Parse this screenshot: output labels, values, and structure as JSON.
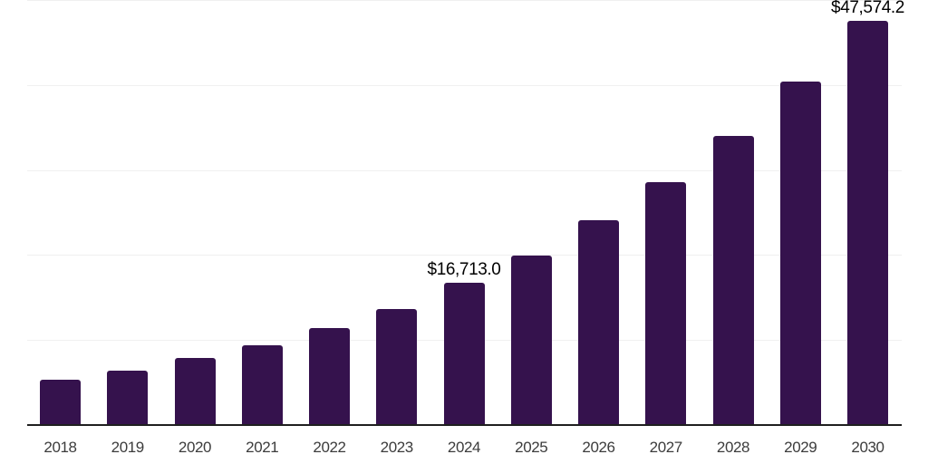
{
  "chart_data": {
    "type": "bar",
    "title": "",
    "xlabel": "",
    "ylabel": "",
    "categories": [
      "2018",
      "2019",
      "2020",
      "2021",
      "2022",
      "2023",
      "2024",
      "2025",
      "2026",
      "2027",
      "2028",
      "2029",
      "2030"
    ],
    "values": [
      5350,
      6450,
      7840,
      9430,
      11390,
      13700,
      16713.0,
      19990,
      24110,
      28620,
      34000,
      40380,
      47574.2
    ],
    "data_labels": {
      "2024": "$16,713.0",
      "2030": "$47,574.2"
    },
    "ylim": [
      0,
      50000
    ],
    "gridline_step": 10000,
    "grid": true,
    "legend": false,
    "y_axis_labels_visible": false,
    "colors": {
      "bar": "#35124d",
      "gridline": "#f0f0f0",
      "axis_line": "#1f1f1f",
      "data_label": "#000000",
      "tick_label": "#3c3c3c",
      "background": "#ffffff"
    }
  }
}
